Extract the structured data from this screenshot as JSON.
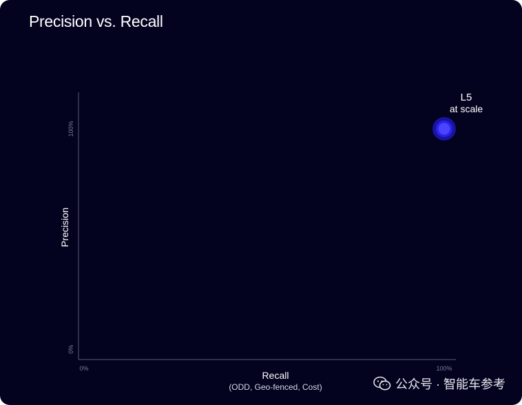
{
  "chart_data": {
    "type": "scatter",
    "title": "Precision vs. Recall",
    "xlabel": "Recall",
    "xlabel_sub": "(ODD, Geo-fenced, Cost)",
    "ylabel": "Precision",
    "xlim": [
      0,
      100
    ],
    "ylim": [
      0,
      100
    ],
    "x_ticks": [
      {
        "value": 0,
        "label": "0%"
      },
      {
        "value": 100,
        "label": "100%"
      }
    ],
    "y_ticks": [
      {
        "value": 0,
        "label": "0%"
      },
      {
        "value": 100,
        "label": "100%"
      }
    ],
    "grid": false,
    "points": [
      {
        "x": 100,
        "y": 100,
        "label_line1": "L5",
        "label_line2": "at scale",
        "color": "#3b33ff",
        "glow": "#1c18b8"
      }
    ]
  },
  "watermark": {
    "text": "公众号 · 智能车参考",
    "icon": "wechat-icon"
  },
  "colors": {
    "background": "#03021f",
    "axis": "#4a4a66",
    "point": "#3b33ff"
  }
}
